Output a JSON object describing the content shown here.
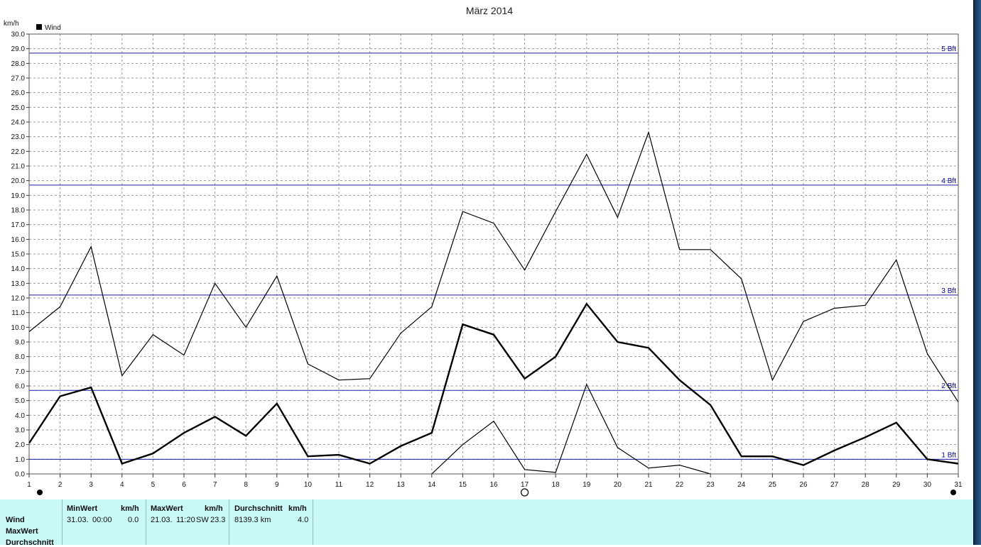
{
  "chart_data": {
    "type": "line",
    "title": "März 2014",
    "ylabel": "km/h",
    "xlabel": "",
    "ylim": [
      0,
      30
    ],
    "ytick_step": 1,
    "x": [
      1,
      2,
      3,
      4,
      5,
      6,
      7,
      8,
      9,
      10,
      11,
      12,
      13,
      14,
      15,
      16,
      17,
      18,
      19,
      20,
      21,
      22,
      23,
      24,
      25,
      26,
      27,
      28,
      29,
      30,
      31
    ],
    "legend": {
      "label": "Wind",
      "placement": "top-left"
    },
    "grid": true,
    "series": [
      {
        "role": "max",
        "stroke_width": 1.2,
        "values": [
          9.7,
          11.4,
          15.5,
          6.7,
          9.5,
          8.1,
          13.0,
          10.0,
          13.5,
          7.5,
          6.4,
          6.5,
          9.6,
          11.4,
          17.9,
          17.1,
          13.9,
          17.9,
          21.8,
          17.5,
          23.3,
          15.3,
          15.3,
          13.3,
          6.4,
          10.4,
          11.3,
          11.5,
          14.6,
          8.2,
          4.9
        ]
      },
      {
        "role": "average",
        "stroke_width": 2.4,
        "values": [
          2.1,
          5.3,
          5.9,
          0.7,
          1.4,
          2.8,
          3.9,
          2.6,
          4.8,
          1.2,
          1.3,
          0.7,
          1.9,
          2.8,
          10.2,
          9.5,
          6.5,
          8.0,
          11.6,
          9.0,
          8.6,
          6.4,
          4.7,
          1.2,
          1.2,
          0.6,
          1.6,
          2.5,
          3.5,
          1.0,
          0.7
        ]
      },
      {
        "role": "min",
        "stroke_width": 1.2,
        "values": [
          null,
          null,
          null,
          null,
          null,
          null,
          null,
          null,
          null,
          null,
          null,
          null,
          null,
          0.0,
          2.0,
          3.6,
          0.3,
          0.1,
          6.1,
          1.8,
          0.4,
          0.6,
          0.0,
          null,
          null,
          null,
          null,
          null,
          null,
          null,
          null
        ]
      }
    ],
    "reference_lines": [
      {
        "label": "1 Bft",
        "value": 1.0
      },
      {
        "label": "2 Bft",
        "value": 5.7
      },
      {
        "label": "3 Bft",
        "value": 12.2
      },
      {
        "label": "4 Bft",
        "value": 19.7
      },
      {
        "label": "5 Bft",
        "value": 28.7
      }
    ],
    "moon_phases": [
      {
        "day": 1,
        "phase": "new"
      },
      {
        "day": 17,
        "phase": "full"
      },
      {
        "day": 31,
        "phase": "new"
      }
    ],
    "colors": {
      "series": "#000000",
      "reference": "#1a1aa0",
      "grid": "#9a9a9a",
      "stats_bg": "#caf8f6"
    }
  },
  "stats": {
    "rows": [
      "Wind",
      "MaxWert",
      "Durchschnitt"
    ],
    "min": {
      "header": "MinWert",
      "unit": "km/h",
      "date": "31.03.",
      "time": "00:00",
      "value": "0.0"
    },
    "max": {
      "header": "MaxWert",
      "unit": "km/h",
      "date": "21.03.",
      "time": "11:20",
      "dir": "SW",
      "value": "23.3"
    },
    "avg": {
      "header": "Durchschnitt",
      "unit": "km/h",
      "distance": "8139.3 km",
      "value": "4.0"
    }
  }
}
